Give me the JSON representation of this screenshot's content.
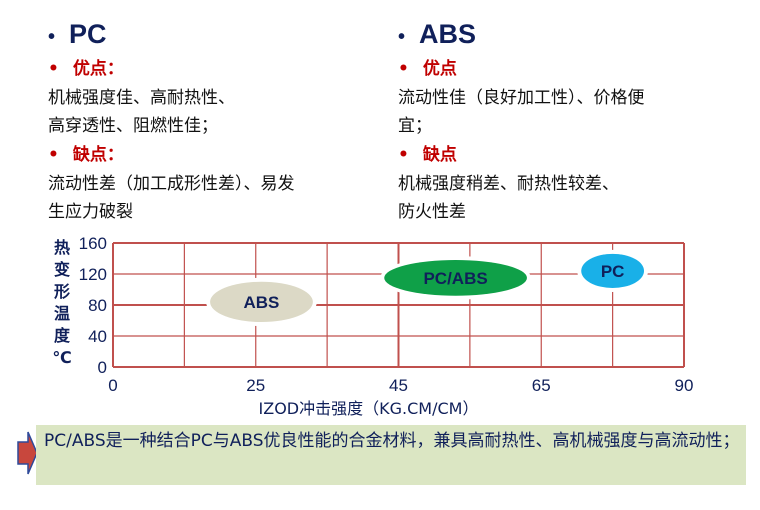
{
  "left": {
    "title": "PC",
    "pros_label": "优点：",
    "pros_lines": [
      "机械强度佳、高耐热性、",
      "高穿透性、阻燃性佳；"
    ],
    "cons_label": "缺点：",
    "cons_lines": [
      "流动性差（加工成形性差）、易发",
      "生应力破裂"
    ]
  },
  "right": {
    "title": "ABS",
    "pros_label": "优点",
    "pros_lines": [
      "流动性佳（良好加工性）、价格便",
      "宜；"
    ],
    "cons_label": "缺点",
    "cons_lines": [
      "机械强度稍差、耐热性较差、",
      "防火性差"
    ]
  },
  "chart_data": {
    "type": "scatter",
    "xlabel": "IZOD冲击强度（KG.CM/CM）",
    "ylabel": "热变形温度℃",
    "ylabel_chars": [
      "热",
      "变",
      "形",
      "温",
      "度",
      "℃"
    ],
    "x_ticks": [
      "0",
      "25",
      "45",
      "65",
      "90"
    ],
    "y_ticks": [
      "0",
      "40",
      "80",
      "120",
      "160"
    ],
    "ylim": [
      0,
      160
    ],
    "xlim": [
      0,
      90
    ],
    "grid": true,
    "regions": [
      {
        "name": "ABS",
        "x_range": [
          17,
          33
        ],
        "y_range": [
          58,
          110
        ],
        "color": "#dcd9c6"
      },
      {
        "name": "PC/ABS",
        "x_range": [
          43,
          63
        ],
        "y_range": [
          92,
          138
        ],
        "color": "#0fa048"
      },
      {
        "name": "PC",
        "x_range": [
          72,
          83
        ],
        "y_range": [
          102,
          146
        ],
        "color": "#19b0e8"
      }
    ],
    "grid_color": "#c0504d"
  },
  "note": {
    "text": "PC/ABS是一种结合PC与ABS优良性能的合金材料，兼具高耐热性、高机械强度与高流动性；"
  }
}
